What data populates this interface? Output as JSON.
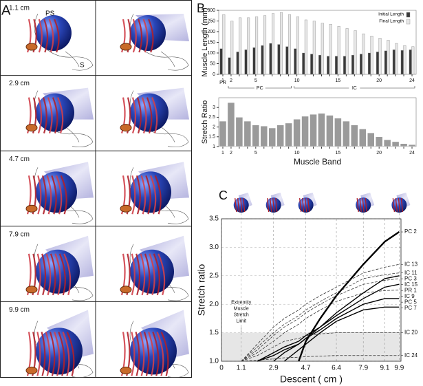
{
  "panel_labels": [
    "A",
    "B",
    "C"
  ],
  "panel_a": {
    "descents": [
      "1.1 cm",
      "2.9 cm",
      "4.7 cm",
      "7.9 cm",
      "9.9 cm"
    ],
    "annotations": [
      "PS",
      "S"
    ]
  },
  "chart_data": [
    {
      "type": "grouped-bar",
      "y_label": "Muscle Length (mm)",
      "categories": [
        1,
        2,
        null,
        null,
        5,
        null,
        null,
        null,
        null,
        10,
        null,
        null,
        null,
        null,
        15,
        null,
        null,
        null,
        null,
        20,
        null,
        null,
        null,
        24
      ],
      "groups": [
        {
          "label": "PR",
          "span": [
            0,
            0
          ]
        },
        {
          "label": "PC",
          "span": [
            1,
            8
          ]
        },
        {
          "label": "IC",
          "span": [
            9,
            23
          ]
        }
      ],
      "series": [
        {
          "name": "Initial Length",
          "color": "#3a3a3a",
          "values": [
            120,
            78,
            105,
            115,
            125,
            135,
            145,
            140,
            130,
            120,
            100,
            95,
            90,
            85,
            85,
            85,
            90,
            95,
            100,
            105,
            110,
            115,
            112,
            115
          ]
        },
        {
          "name": "Final Length",
          "color": "#e6e6e6",
          "values": [
            280,
            250,
            265,
            265,
            270,
            275,
            285,
            290,
            280,
            270,
            255,
            250,
            240,
            235,
            225,
            215,
            205,
            190,
            180,
            170,
            160,
            145,
            135,
            130
          ]
        }
      ],
      "ylim": [
        0,
        300
      ],
      "yticks": [
        0,
        50,
        100,
        150,
        200,
        250,
        300
      ],
      "legend": "top-right"
    },
    {
      "type": "bar",
      "y_label": "Stretch Ratio",
      "x_label": "Muscle Band",
      "categories": [
        1,
        2,
        null,
        null,
        5,
        null,
        null,
        null,
        null,
        10,
        null,
        null,
        null,
        null,
        15,
        null,
        null,
        null,
        null,
        20,
        null,
        null,
        null,
        24
      ],
      "values": [
        2.3,
        3.25,
        2.5,
        2.3,
        2.1,
        2.05,
        1.95,
        2.1,
        2.2,
        2.4,
        2.55,
        2.65,
        2.7,
        2.6,
        2.45,
        2.3,
        2.1,
        1.9,
        1.7,
        1.5,
        1.35,
        1.25,
        1.15,
        1.1
      ],
      "color": "#9a9a9a",
      "ylim": [
        1,
        3.5
      ],
      "yticks": [
        1,
        1.5,
        2,
        2.5,
        3
      ]
    },
    {
      "type": "line",
      "x_label": "Descent ( cm )",
      "y_label": "Stretch ratio",
      "x": [
        1.1,
        2.0,
        2.9,
        3.5,
        4.3,
        4.7,
        5.5,
        6.4,
        7.9,
        9.1,
        9.9
      ],
      "series": [
        {
          "name": "PC 2",
          "color": "#000000",
          "dashed": false,
          "width": 2.4,
          "values": [
            null,
            null,
            null,
            null,
            1.0,
            1.35,
            1.75,
            2.15,
            2.7,
            3.1,
            3.27
          ]
        },
        {
          "name": "IC 13",
          "color": "#333333",
          "dashed": true,
          "width": 0.8,
          "values": [
            1.0,
            1.3,
            1.6,
            1.75,
            1.9,
            2.0,
            2.15,
            2.3,
            2.55,
            2.65,
            2.7
          ]
        },
        {
          "name": "IC 11",
          "color": "#333333",
          "dashed": true,
          "width": 0.8,
          "values": [
            1.0,
            1.25,
            1.5,
            1.65,
            1.8,
            1.9,
            2.05,
            2.2,
            2.45,
            2.52,
            2.55
          ]
        },
        {
          "name": "PC 3",
          "color": "#000000",
          "dashed": false,
          "width": 1.4,
          "values": [
            null,
            null,
            1.0,
            1.15,
            1.3,
            1.4,
            1.6,
            1.85,
            2.2,
            2.45,
            2.5
          ]
        },
        {
          "name": "IC 15",
          "color": "#333333",
          "dashed": true,
          "width": 0.8,
          "values": [
            1.0,
            1.2,
            1.45,
            1.6,
            1.75,
            1.85,
            2.0,
            2.15,
            2.35,
            2.42,
            2.45
          ]
        },
        {
          "name": "PR 1",
          "color": "#000000",
          "dashed": false,
          "width": 1.4,
          "values": [
            null,
            1.0,
            1.15,
            1.25,
            1.35,
            1.45,
            1.6,
            1.8,
            2.1,
            2.3,
            2.35
          ]
        },
        {
          "name": "IC 9",
          "color": "#333333",
          "dashed": true,
          "width": 0.8,
          "values": [
            1.0,
            1.15,
            1.35,
            1.5,
            1.65,
            1.75,
            1.9,
            2.05,
            2.2,
            2.24,
            2.25
          ]
        },
        {
          "name": "PC 5",
          "color": "#000000",
          "dashed": false,
          "width": 1.4,
          "values": [
            null,
            1.0,
            1.1,
            1.2,
            1.3,
            1.4,
            1.55,
            1.75,
            2.0,
            2.1,
            2.1
          ]
        },
        {
          "name": "PC 7",
          "color": "#000000",
          "dashed": false,
          "width": 1.4,
          "values": [
            null,
            null,
            null,
            1.0,
            1.2,
            1.3,
            1.5,
            1.7,
            1.9,
            1.95,
            1.95
          ]
        },
        {
          "name": "IC 20",
          "color": "#333333",
          "dashed": true,
          "width": 0.8,
          "values": [
            1.0,
            1.1,
            1.25,
            1.35,
            1.4,
            1.45,
            1.48,
            1.5,
            1.5,
            1.5,
            1.5
          ]
        },
        {
          "name": "IC 24",
          "color": "#333333",
          "dashed": true,
          "width": 0.8,
          "values": [
            1.0,
            1.02,
            1.04,
            1.06,
            1.07,
            1.08,
            1.09,
            1.1,
            1.1,
            1.1,
            1.1
          ]
        }
      ],
      "xlim": [
        0,
        10
      ],
      "xticks": [
        0,
        1.1,
        2.9,
        4.7,
        6.4,
        7.9,
        9.1,
        9.9
      ],
      "ylim": [
        1,
        3.5
      ],
      "yticks": [
        {
          "value": 1,
          "label": "1.0"
        },
        1.5,
        {
          "value": 2,
          "label": "2.0"
        },
        2.5,
        {
          "value": 3,
          "label": "3.0"
        },
        3.5
      ],
      "shaded_band": {
        "range": [
          1,
          1.5
        ],
        "color": "#e6e6e6",
        "label_lines": [
          "Extremity",
          "Muscle",
          "Stretch",
          "Limit"
        ]
      },
      "grid": true
    }
  ]
}
